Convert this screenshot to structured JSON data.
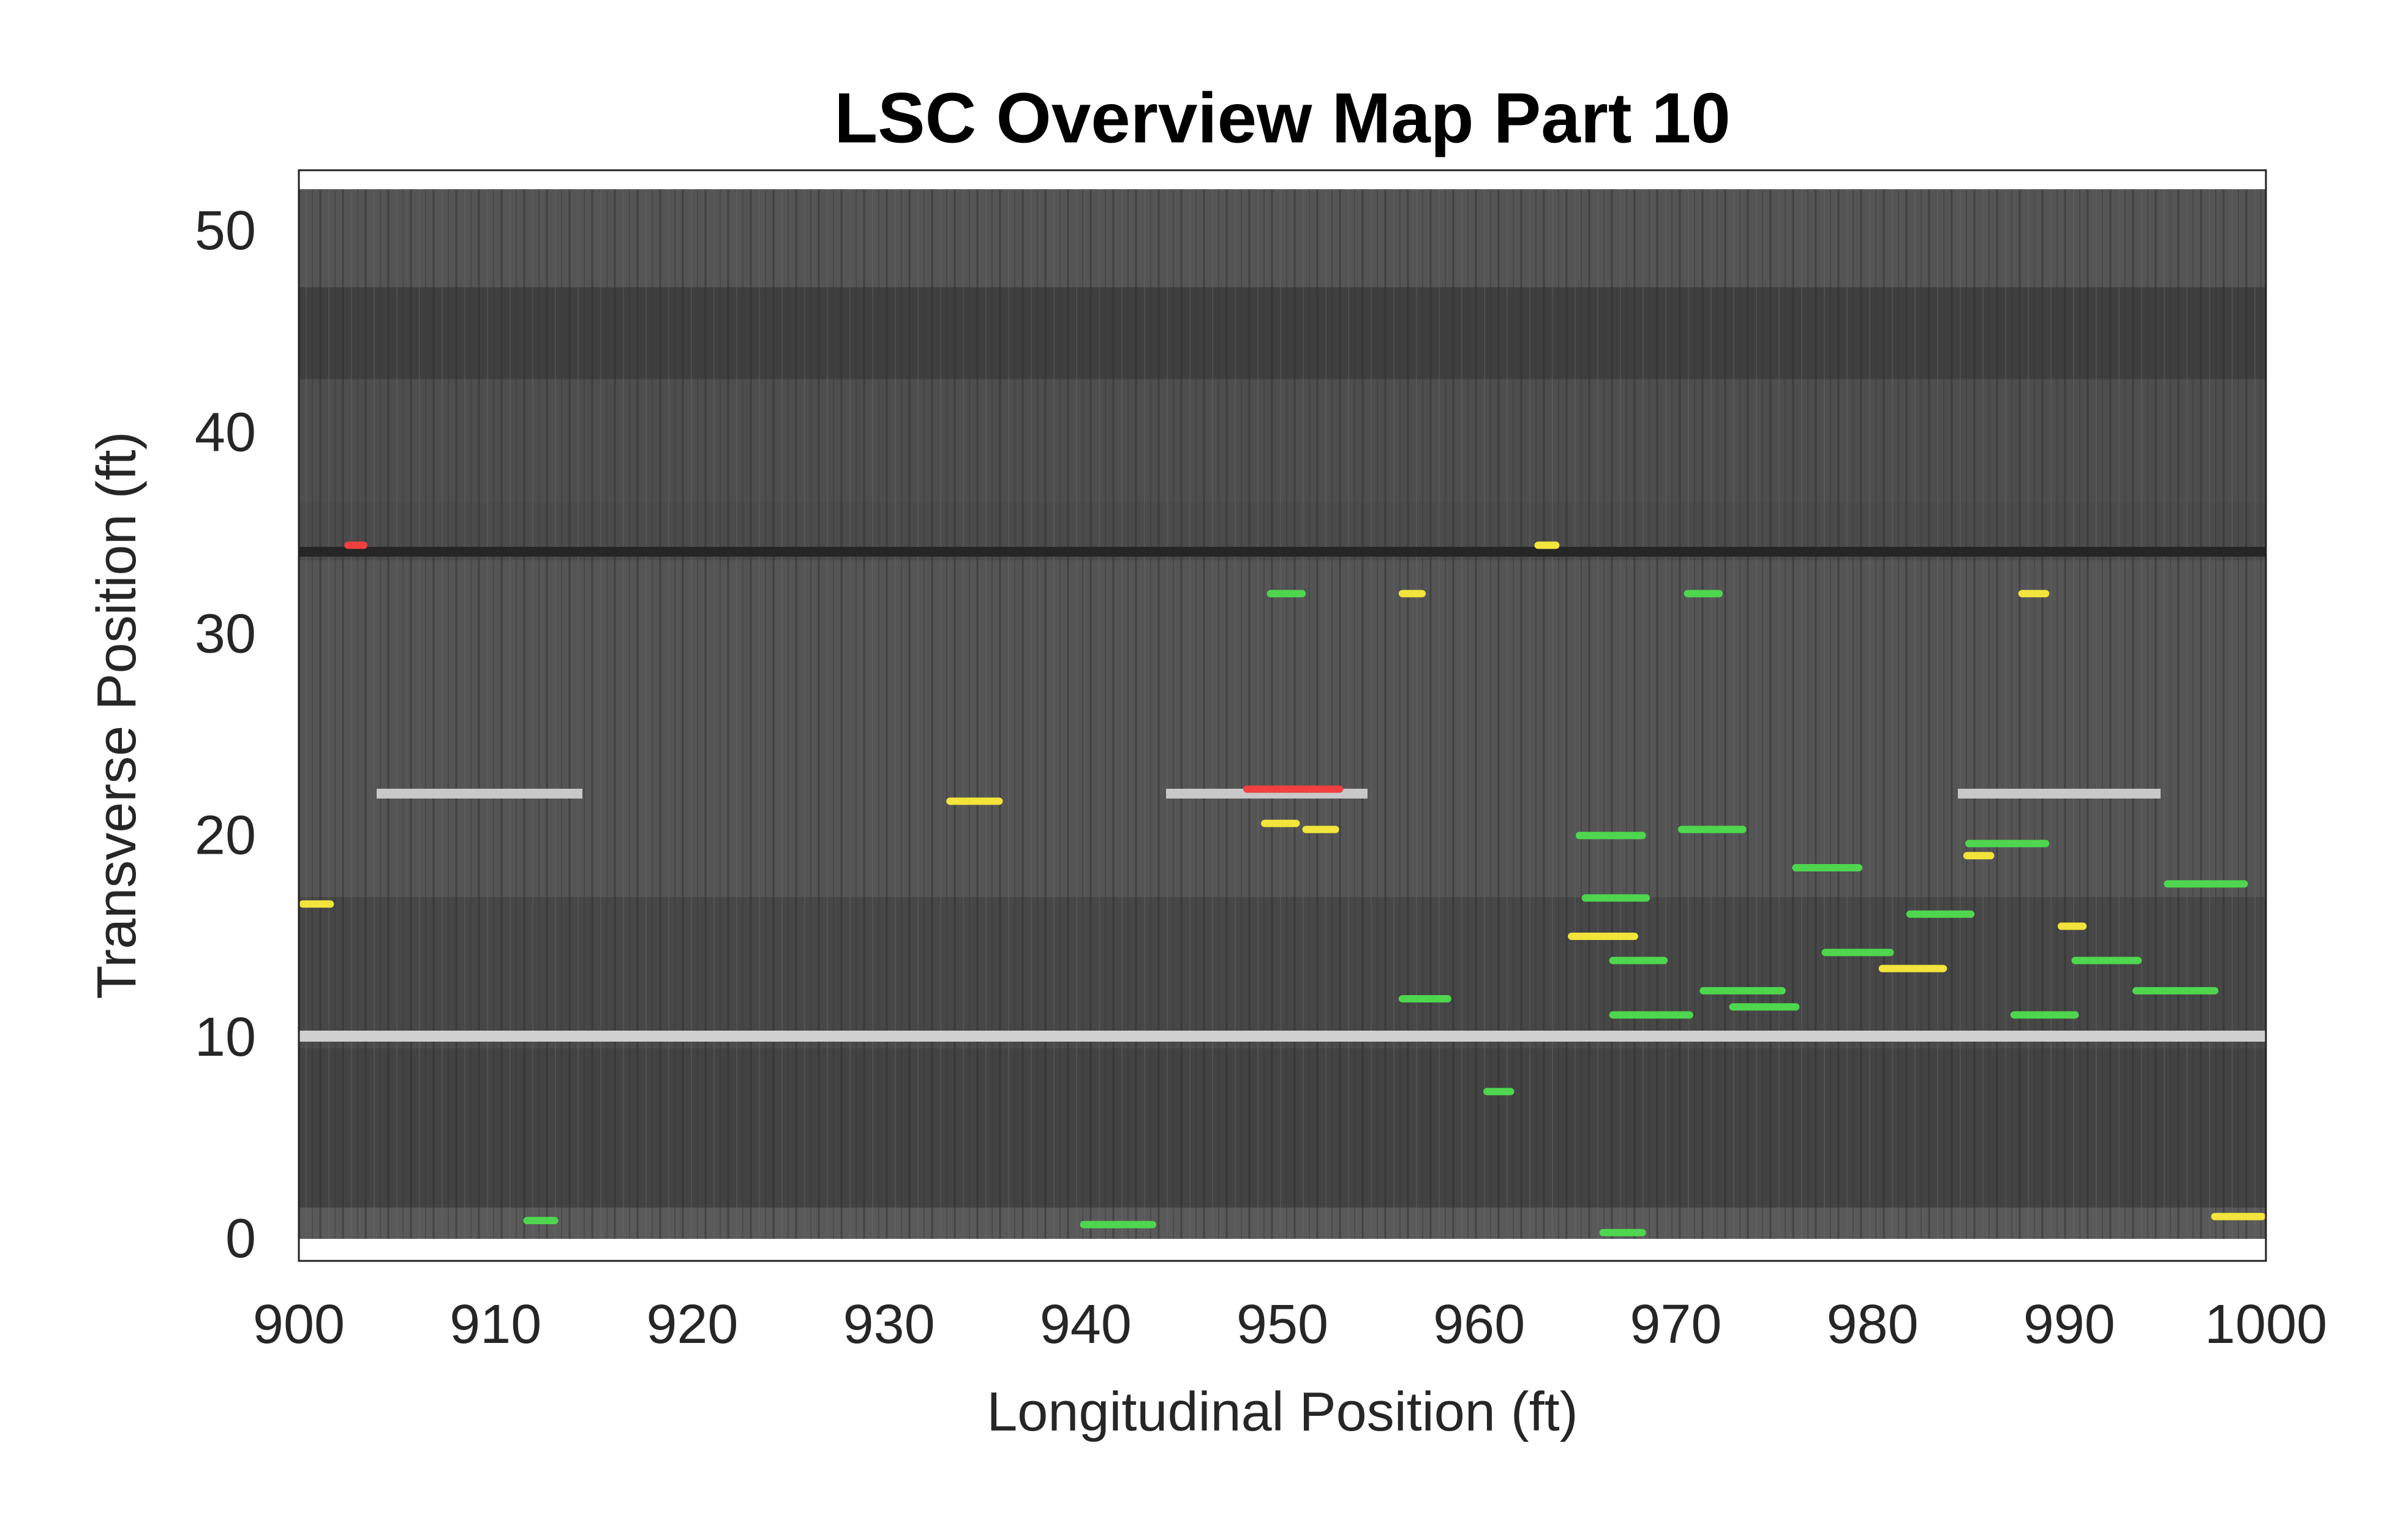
{
  "chart_data": {
    "type": "segments",
    "title": "LSC Overview Map Part 10",
    "x_label": "Longitudinal Position (ft)",
    "y_label": "Transverse Position (ft)",
    "xlim": [
      900,
      1000
    ],
    "xticks": [
      900,
      910,
      920,
      930,
      940,
      950,
      960,
      970,
      980,
      990,
      1000
    ],
    "ylim": [
      -0.9,
      53.2
    ],
    "yticks": [
      0,
      10,
      20,
      30,
      40,
      50
    ],
    "series": [
      {
        "color": "#f2e43a",
        "x": [
          933.1,
          964.7,
          984.8,
          900.2,
          956.1,
          987.6,
          997.4,
          980.5,
          949.1,
          951.2,
          989.6,
          963.0
        ],
        "x2": [
          935.6,
          967.9,
          986.0,
          901.6,
          957.1,
          988.8,
          999.8,
          983.6,
          950.7,
          952.7,
          990.7,
          963.9
        ],
        "y": [
          21.9,
          15.2,
          19.2,
          16.8,
          32.2,
          32.2,
          1.3,
          13.6,
          20.8,
          20.5,
          15.7,
          34.6
        ]
      },
      {
        "color": "#4fd64f",
        "x": [
          965.1,
          970.3,
          966.8,
          971.4,
          976.1,
          984.9,
          995.0,
          993.4,
          987.2,
          965.4,
          977.6,
          939.9,
          911.6,
          966.3,
          966.8,
          972.9,
          990.3,
          981.9,
          949.4,
          970.6,
          956.1,
          960.4
        ],
        "x2": [
          968.3,
          973.4,
          970.7,
          975.4,
          979.3,
          988.8,
          998.9,
          997.4,
          990.3,
          968.5,
          980.9,
          943.4,
          913.0,
          968.3,
          969.4,
          976.1,
          993.5,
          985.0,
          951.0,
          972.2,
          958.4,
          961.6
        ],
        "y": [
          20.2,
          20.5,
          11.3,
          12.5,
          18.6,
          19.8,
          17.8,
          12.5,
          11.3,
          17.1,
          14.4,
          0.9,
          1.1,
          0.5,
          14.0,
          11.7,
          14.0,
          16.3,
          32.2,
          32.2,
          12.1,
          7.5
        ]
      },
      {
        "color": "#f04040",
        "x": [
          902.5,
          948.2
        ],
        "x2": [
          903.3,
          952.9
        ],
        "y": [
          34.6,
          22.5
        ]
      }
    ]
  }
}
